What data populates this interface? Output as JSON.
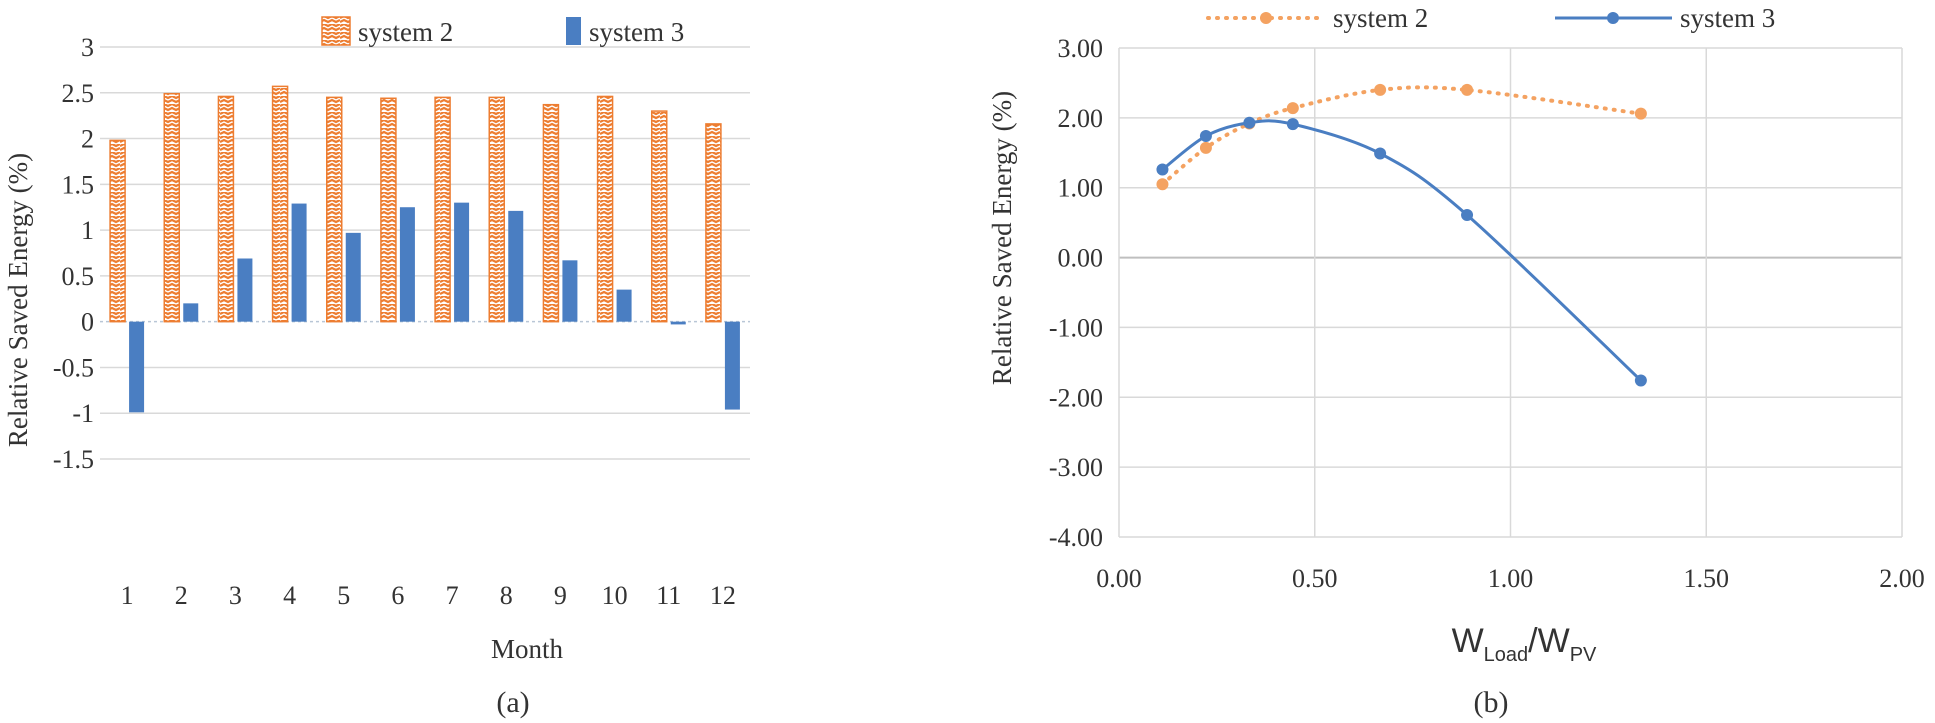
{
  "chart_data": [
    {
      "type": "bar",
      "caption": "(a)",
      "title": "",
      "xlabel": "Month",
      "ylabel": "Relative Saved Energy (%)",
      "categories": [
        "1",
        "2",
        "3",
        "4",
        "5",
        "6",
        "7",
        "8",
        "9",
        "10",
        "11",
        "12"
      ],
      "ylim": [
        -1.5,
        3
      ],
      "yticks": [
        "3",
        "2.5",
        "2",
        "1.5",
        "1",
        "0.5",
        "0",
        "-0.5",
        "-1",
        "-1.5"
      ],
      "grid": true,
      "legend_position": "top",
      "series": [
        {
          "name": "system 2",
          "color": "#ED7D31",
          "pattern": "zigzag-hatch",
          "values": [
            1.98,
            2.49,
            2.46,
            2.57,
            2.45,
            2.44,
            2.45,
            2.45,
            2.37,
            2.46,
            2.3,
            2.16
          ]
        },
        {
          "name": "system 3",
          "color": "#4A7EC2",
          "pattern": "solid",
          "values": [
            -0.99,
            0.2,
            0.69,
            1.29,
            0.97,
            1.25,
            1.3,
            1.21,
            0.67,
            0.35,
            -0.03,
            -0.96
          ]
        }
      ]
    },
    {
      "type": "line",
      "caption": "(b)",
      "title": "",
      "xlabel": {
        "main1": "W",
        "sub1": "Load",
        "slash": "/W",
        "sub2": "PV"
      },
      "ylabel": "Relative Saved Energy (%)",
      "xlim": [
        0,
        2
      ],
      "ylim": [
        -4,
        3
      ],
      "xticks": [
        "0.00",
        "0.50",
        "1.00",
        "1.50",
        "2.00"
      ],
      "yticks": [
        "3.00",
        "2.00",
        "1.00",
        "0.00",
        "-1.00",
        "-2.00",
        "-3.00",
        "-4.00"
      ],
      "grid": true,
      "legend_position": "top",
      "series": [
        {
          "name": "system 2",
          "color": "#F4A261",
          "style": "dotted-smooth",
          "x": [
            0.111,
            0.222,
            0.333,
            0.444,
            0.667,
            0.889,
            1.333
          ],
          "y": [
            1.05,
            1.57,
            1.92,
            2.14,
            2.4,
            2.4,
            2.06
          ]
        },
        {
          "name": "system 3",
          "color": "#4A7EC2",
          "style": "solid-smooth",
          "x": [
            0.111,
            0.222,
            0.333,
            0.444,
            0.667,
            0.889,
            1.333
          ],
          "y": [
            1.26,
            1.74,
            1.93,
            1.91,
            1.49,
            0.61,
            -1.76
          ]
        }
      ]
    }
  ]
}
